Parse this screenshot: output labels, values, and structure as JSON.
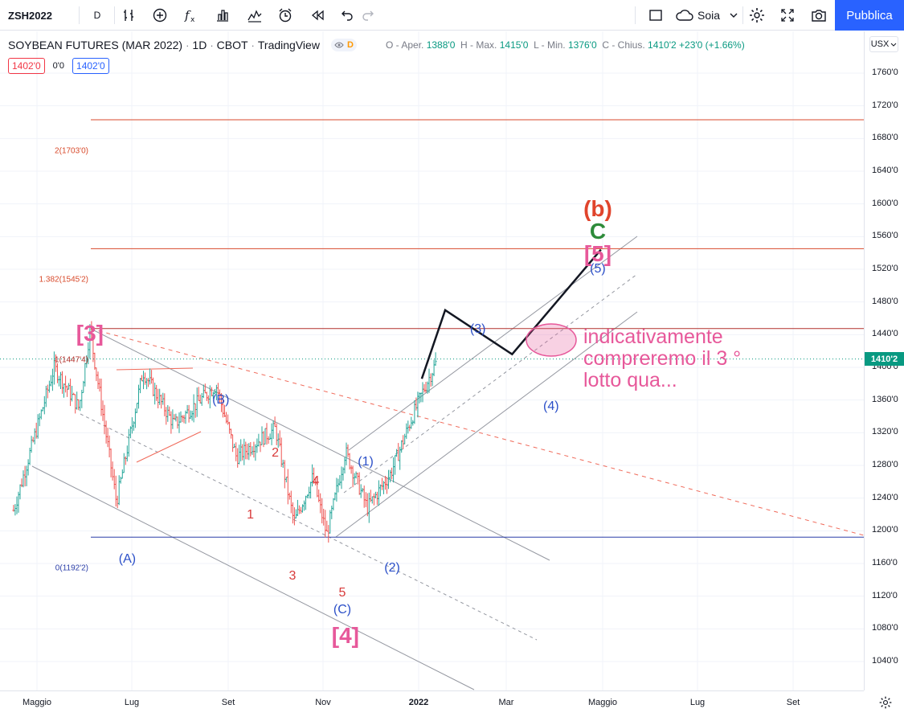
{
  "toolbar": {
    "symbol": "ZSH2022",
    "interval": "D",
    "icons": [
      "bars-icon",
      "add-compare-icon",
      "indicators-icon",
      "templates-icon",
      "chart-type-icon",
      "alert-icon",
      "replay-icon",
      "undo-icon",
      "redo-icon"
    ],
    "layout_icon": "square-layout-icon",
    "layout_name": "Soia",
    "settings_icon": "gear-icon",
    "fullscreen_icon": "fullscreen-icon",
    "snapshot_icon": "camera-icon",
    "publish_label": "Pubblica"
  },
  "legend": {
    "title": "SOYBEAN FUTURES (MAR 2022)",
    "interval": "1D",
    "exchange": "CBOT",
    "source": "TradingView",
    "badge": "D",
    "ohlc": {
      "open_label": "O - Aper.",
      "open": "1388'0",
      "high_label": "H - Max.",
      "high": "1415'0",
      "low_label": "L - Min.",
      "low": "1376'0",
      "close_label": "C - Chius.",
      "close": "1410'2",
      "change": "+23'0 (+1.66%)"
    },
    "sell_price": "1402'0",
    "spread": "0'0",
    "buy_price": "1402'0"
  },
  "axis": {
    "currency": "USX",
    "price_labels": [
      "1760'0",
      "1720'0",
      "1680'0",
      "1640'0",
      "1600'0",
      "1560'0",
      "1520'0",
      "1480'0",
      "1440'0",
      "1400'0",
      "1360'0",
      "1320'0",
      "1280'0",
      "1240'0",
      "1200'0",
      "1160'0",
      "1120'0",
      "1080'0",
      "1040'0"
    ],
    "last_price": "1410'2",
    "time_labels": [
      {
        "text": "Maggio",
        "bold": false
      },
      {
        "text": "Lug",
        "bold": false
      },
      {
        "text": "Set",
        "bold": false
      },
      {
        "text": "Nov",
        "bold": false
      },
      {
        "text": "2022",
        "bold": true
      },
      {
        "text": "Mar",
        "bold": false
      },
      {
        "text": "Maggio",
        "bold": false
      },
      {
        "text": "Lug",
        "bold": false
      },
      {
        "text": "Set",
        "bold": false
      }
    ]
  },
  "fib_levels": [
    {
      "label": "2(1703'0)",
      "price": 1703,
      "color": "#d84a2b"
    },
    {
      "label": "1.382(1545'2)",
      "price": 1545.25,
      "color": "#d84a2b"
    },
    {
      "label": "1(1447'4)",
      "price": 1447.5,
      "color": "#b2302b"
    },
    {
      "label": "0(1192'2)",
      "price": 1192.25,
      "color": "#2b3ea8"
    }
  ],
  "waves": [
    {
      "text": "[3]",
      "color": "#e7589a",
      "price": 1480,
      "date": "2021-06-04"
    },
    {
      "text": "(A)",
      "color": "#2b4fc8",
      "price": 1203,
      "date": "2021-06-28"
    },
    {
      "text": "(B)",
      "color": "#2b4fc8",
      "price": 1398,
      "date": "2021-08-27"
    },
    {
      "text": "1",
      "color": "#d83a3a",
      "price": 1257,
      "date": "2021-09-15"
    },
    {
      "text": "2",
      "color": "#d83a3a",
      "price": 1333,
      "date": "2021-10-01"
    },
    {
      "text": "3",
      "color": "#d83a3a",
      "price": 1183,
      "date": "2021-10-12"
    },
    {
      "text": "4",
      "color": "#d83a3a",
      "price": 1299,
      "date": "2021-10-27"
    },
    {
      "text": "5",
      "color": "#d83a3a",
      "price": 1162,
      "date": "2021-11-13"
    },
    {
      "text": "(C)",
      "color": "#2b4fc8",
      "price": 1141,
      "date": "2021-11-13"
    },
    {
      "text": "[4]",
      "color": "#e7589a",
      "price": 1110,
      "date": "2021-11-15"
    },
    {
      "text": "(1)",
      "color": "#2b4fc8",
      "price": 1322,
      "date": "2021-11-28"
    },
    {
      "text": "(2)",
      "color": "#2b4fc8",
      "price": 1192,
      "date": "2021-12-15"
    },
    {
      "text": "(3)",
      "color": "#2b4fc8",
      "price": 1485,
      "date": "2022-02-08"
    },
    {
      "text": "(4)",
      "color": "#2b4fc8",
      "price": 1390,
      "date": "2022-03-27"
    },
    {
      "text": "(5)",
      "color": "#2b4fc8",
      "price": 1558,
      "date": "2022-04-26"
    },
    {
      "text": "[5]",
      "color": "#e7589a",
      "price": 1577,
      "date": "2022-04-26"
    },
    {
      "text": "C",
      "color": "#2e8b3a",
      "price": 1605,
      "date": "2022-04-26"
    },
    {
      "text": "(b)",
      "color": "#e0442c",
      "price": 1632,
      "date": "2022-04-26"
    }
  ],
  "annotation": "indicativamente\ncompreremo il 3 °\nlotto qua...",
  "chart_data": {
    "type": "candlestick",
    "symbol": "ZSH2022",
    "interval": "1D",
    "ylim": [
      1004,
      1806
    ],
    "xlim": [
      "2021-04-16",
      "2022-11-14"
    ],
    "last_price": 1410.25,
    "projection_path": {
      "dates": [
        "2022-01-03",
        "2022-01-18",
        "2022-03-02",
        "2022-04-28"
      ],
      "prices": [
        1386,
        1470,
        1416,
        1544
      ]
    }
  }
}
